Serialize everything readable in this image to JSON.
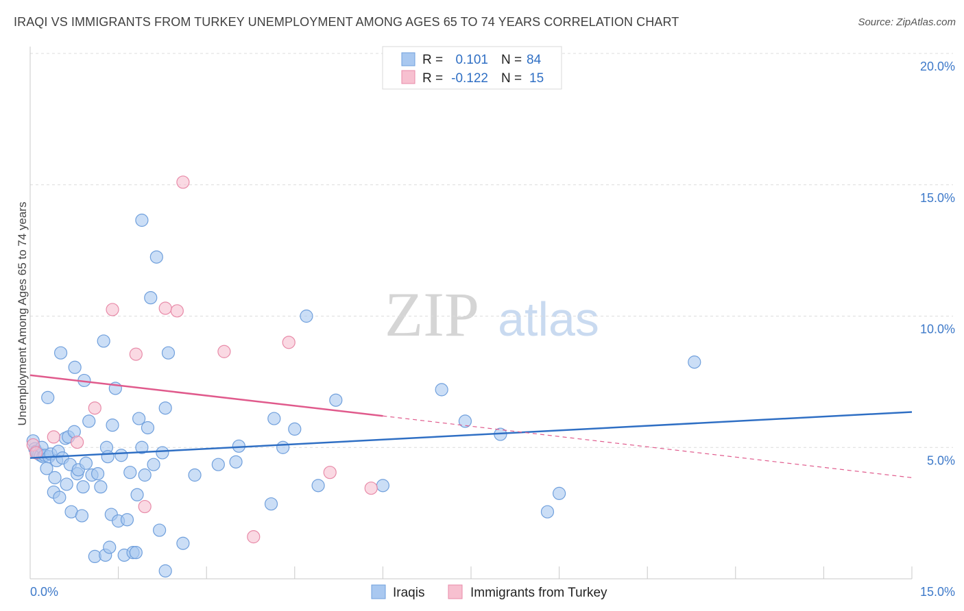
{
  "chart_data": {
    "type": "scatter",
    "title": "IRAQI VS IMMIGRANTS FROM TURKEY UNEMPLOYMENT AMONG AGES 65 TO 74 YEARS CORRELATION CHART",
    "source": "Source: ZipAtlas.com",
    "watermark": {
      "zip": "ZIP",
      "atlas": "atlas"
    },
    "ylabel": "Unemployment Among Ages 65 to 74 years",
    "xlim": [
      0,
      15
    ],
    "ylim": [
      0,
      20
    ],
    "x_tick_labels": [
      {
        "value": 0,
        "label": "0.0%"
      },
      {
        "value": 15,
        "label": "15.0%"
      }
    ],
    "y_tick_labels": [
      {
        "value": 5,
        "label": "5.0%"
      },
      {
        "value": 10,
        "label": "10.0%"
      },
      {
        "value": 15,
        "label": "15.0%"
      },
      {
        "value": 20,
        "label": "20.0%"
      }
    ],
    "legend": [
      {
        "r_label": "R =",
        "r_value": "0.101",
        "n_label": "N =",
        "n_value": "84"
      },
      {
        "r_label": "R =",
        "r_value": "-0.122",
        "n_label": "N =",
        "n_value": "15"
      }
    ],
    "series": [
      {
        "name": "Iraqis",
        "color": "#a9c8f0",
        "stroke": "#6f9fdc",
        "line_color": "#2f6fc4",
        "trend": {
          "x0": 0,
          "y0": 4.6,
          "x1": 15,
          "y1": 6.35
        },
        "points": [
          [
            0.05,
            5.25
          ],
          [
            0.08,
            4.95
          ],
          [
            0.1,
            4.85
          ],
          [
            0.12,
            4.8
          ],
          [
            0.15,
            4.75
          ],
          [
            0.18,
            4.7
          ],
          [
            0.2,
            5.0
          ],
          [
            0.22,
            4.65
          ],
          [
            0.25,
            4.7
          ],
          [
            0.28,
            4.2
          ],
          [
            0.3,
            6.9
          ],
          [
            0.32,
            4.65
          ],
          [
            0.35,
            4.75
          ],
          [
            0.4,
            3.3
          ],
          [
            0.42,
            3.85
          ],
          [
            0.45,
            4.5
          ],
          [
            0.48,
            4.85
          ],
          [
            0.5,
            3.1
          ],
          [
            0.52,
            8.6
          ],
          [
            0.55,
            4.6
          ],
          [
            0.6,
            5.35
          ],
          [
            0.62,
            3.6
          ],
          [
            0.65,
            5.4
          ],
          [
            0.68,
            4.35
          ],
          [
            0.7,
            2.55
          ],
          [
            0.75,
            5.6
          ],
          [
            0.76,
            8.05
          ],
          [
            0.8,
            4.0
          ],
          [
            0.82,
            4.15
          ],
          [
            0.88,
            2.4
          ],
          [
            0.9,
            3.5
          ],
          [
            0.92,
            7.55
          ],
          [
            0.95,
            4.4
          ],
          [
            1.0,
            6.0
          ],
          [
            1.05,
            3.95
          ],
          [
            1.1,
            0.85
          ],
          [
            1.15,
            4.0
          ],
          [
            1.2,
            3.5
          ],
          [
            1.25,
            9.05
          ],
          [
            1.28,
            0.9
          ],
          [
            1.3,
            5.0
          ],
          [
            1.32,
            4.65
          ],
          [
            1.35,
            1.2
          ],
          [
            1.38,
            2.45
          ],
          [
            1.4,
            5.85
          ],
          [
            1.45,
            7.25
          ],
          [
            1.5,
            2.2
          ],
          [
            1.55,
            4.7
          ],
          [
            1.6,
            0.9
          ],
          [
            1.65,
            2.25
          ],
          [
            1.7,
            4.05
          ],
          [
            1.75,
            1.0
          ],
          [
            1.8,
            1.0
          ],
          [
            1.82,
            3.2
          ],
          [
            1.85,
            6.1
          ],
          [
            1.9,
            5.0
          ],
          [
            1.95,
            3.95
          ],
          [
            2.0,
            5.75
          ],
          [
            2.05,
            10.7
          ],
          [
            2.1,
            4.35
          ],
          [
            2.15,
            12.25
          ],
          [
            2.2,
            1.85
          ],
          [
            2.25,
            4.8
          ],
          [
            2.3,
            6.5
          ],
          [
            2.35,
            8.6
          ],
          [
            2.3,
            0.3
          ],
          [
            2.6,
            1.35
          ],
          [
            2.8,
            3.95
          ],
          [
            3.2,
            4.35
          ],
          [
            3.5,
            4.45
          ],
          [
            3.55,
            5.05
          ],
          [
            4.1,
            2.85
          ],
          [
            4.15,
            6.1
          ],
          [
            4.3,
            5.0
          ],
          [
            4.5,
            5.7
          ],
          [
            4.7,
            10.0
          ],
          [
            4.9,
            3.55
          ],
          [
            5.2,
            6.8
          ],
          [
            6.0,
            3.55
          ],
          [
            7.0,
            7.2
          ],
          [
            7.4,
            6.0
          ],
          [
            8.0,
            5.5
          ],
          [
            8.8,
            2.55
          ],
          [
            9.0,
            3.25
          ],
          [
            11.3,
            8.25
          ],
          [
            1.9,
            13.65
          ]
        ]
      },
      {
        "name": "Immigrants from Turkey",
        "color": "#f7c0d0",
        "stroke": "#e88aa8",
        "line_color": "#e05a8c",
        "trend": {
          "x0": 0,
          "y0": 7.75,
          "x1": 6.0,
          "y1": 6.2,
          "dash_x1": 15,
          "dash_y1": 3.85
        },
        "points": [
          [
            0.05,
            5.1
          ],
          [
            0.1,
            4.8
          ],
          [
            0.4,
            5.4
          ],
          [
            0.8,
            5.2
          ],
          [
            1.1,
            6.5
          ],
          [
            1.4,
            10.25
          ],
          [
            1.8,
            8.55
          ],
          [
            2.3,
            10.3
          ],
          [
            2.5,
            10.2
          ],
          [
            2.6,
            15.1
          ],
          [
            3.3,
            8.65
          ],
          [
            4.4,
            9.0
          ],
          [
            5.1,
            4.05
          ],
          [
            5.8,
            3.45
          ],
          [
            3.8,
            1.6
          ],
          [
            1.95,
            2.75
          ]
        ]
      }
    ]
  }
}
